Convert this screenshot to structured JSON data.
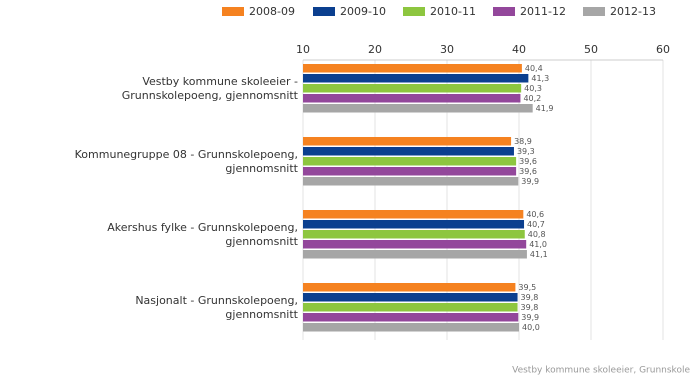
{
  "chart_data": {
    "type": "hbar",
    "categories": [
      "Vestby kommune skoleeier - Grunnskolepoeng, gjennomsnitt",
      "Kommunegruppe 08 - Grunnskolepoeng, gjennomsnitt",
      "Akershus fylke - Grunnskolepoeng, gjennomsnitt",
      "Nasjonalt - Grunnskolepoeng, gjennomsnitt"
    ],
    "series": [
      {
        "name": "2008-09",
        "color": "#f58220",
        "values": [
          40.4,
          38.9,
          40.6,
          39.5
        ],
        "value_labels": [
          "40,4",
          "38,9",
          "40,6",
          "39,5"
        ]
      },
      {
        "name": "2009-10",
        "color": "#0b3f8f",
        "values": [
          41.3,
          39.3,
          40.7,
          39.8
        ],
        "value_labels": [
          "41,3",
          "39,3",
          "40,7",
          "39,8"
        ]
      },
      {
        "name": "2010-11",
        "color": "#8dc63f",
        "values": [
          40.3,
          39.6,
          40.8,
          39.8
        ],
        "value_labels": [
          "40,3",
          "39,6",
          "40,8",
          "39,8"
        ]
      },
      {
        "name": "2011-12",
        "color": "#93479b",
        "values": [
          40.2,
          39.6,
          41.0,
          39.9
        ],
        "value_labels": [
          "40,2",
          "39,6",
          "41,0",
          "39,9"
        ]
      },
      {
        "name": "2012-13",
        "color": "#a6a6a6",
        "values": [
          41.9,
          39.9,
          41.1,
          40.0
        ],
        "value_labels": [
          "41,9",
          "39,9",
          "41,1",
          "40,0"
        ]
      }
    ],
    "xlim": [
      10,
      60
    ],
    "xticks": [
      10,
      20,
      30,
      40,
      50,
      60
    ],
    "grid": true,
    "source": "Vestby kommune skoleeier, Grunnskole"
  }
}
